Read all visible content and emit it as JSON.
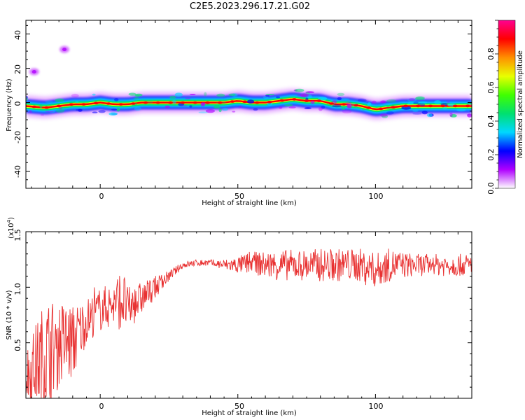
{
  "title": "C2E5.2023.296.17.21.G02",
  "chart_data": [
    {
      "type": "heatmap",
      "xlabel": "Height of straight line (km)",
      "ylabel": "Frequency (Hz)",
      "xlim": [
        -27,
        135
      ],
      "ylim": [
        -50,
        48
      ],
      "xticks": [
        "0",
        "50",
        "100"
      ],
      "yticks": [
        "40",
        "20",
        "0",
        "-20",
        "-40"
      ],
      "colorbar": {
        "label": "Normalized spectral amplitude",
        "ticks": [
          "0.0",
          "0.2",
          "0.4",
          "0.6",
          "0.8"
        ],
        "range": [
          0,
          1
        ],
        "colormap": [
          "#ffffff",
          "#b000ff",
          "#0000ff",
          "#00d8ff",
          "#00e070",
          "#40ff00",
          "#e8ff00",
          "#ff9000",
          "#ff0000",
          "#ff0090"
        ]
      },
      "ridge": {
        "x": [
          -27,
          -20,
          -15,
          -10,
          -5,
          0,
          5,
          10,
          15,
          20,
          30,
          40,
          45,
          50,
          55,
          60,
          65,
          70,
          75,
          80,
          85,
          90,
          95,
          100,
          105,
          110,
          115,
          120,
          125,
          130,
          135
        ],
        "y": [
          -2,
          -3,
          -2,
          -1,
          -1,
          0,
          -1,
          -1,
          0,
          0,
          0,
          0,
          0,
          1,
          0,
          0,
          1,
          2,
          1,
          1,
          -1,
          -1,
          -2,
          -4,
          -3,
          -2,
          -2,
          -2,
          -2,
          -2,
          -2
        ]
      },
      "spots": [
        {
          "x": -24,
          "y": 18,
          "value": 0.2
        },
        {
          "x": -13,
          "y": 31,
          "value": 0.15
        }
      ]
    },
    {
      "type": "line",
      "xlabel": "Height of straight line (km)",
      "ylabel": "SNR (10 * v/v)",
      "y_multiplier": "(x10",
      "y_multiplier_exp": "4",
      "xlim": [
        -27,
        135
      ],
      "ylim": [
        0,
        1.5
      ],
      "xticks": [
        "0",
        "50",
        "100"
      ],
      "yticks": [
        "1.5",
        "1.0",
        "0.5"
      ],
      "color": "#e83030",
      "x": [
        -27,
        -20,
        -15,
        -10,
        -5,
        0,
        5,
        8,
        10,
        15,
        20,
        25,
        30,
        35,
        40,
        45,
        50,
        55,
        60,
        65,
        70,
        75,
        80,
        85,
        90,
        95,
        100,
        105,
        110,
        115,
        120,
        125,
        130,
        135
      ],
      "y": [
        0.2,
        0.4,
        0.5,
        0.5,
        0.7,
        0.8,
        0.85,
        0.9,
        0.8,
        0.9,
        1.0,
        1.1,
        1.2,
        1.22,
        1.22,
        1.2,
        1.2,
        1.22,
        1.2,
        1.2,
        1.2,
        1.2,
        1.2,
        1.2,
        1.2,
        1.2,
        1.15,
        1.2,
        1.2,
        1.2,
        1.2,
        1.2,
        1.2,
        1.2
      ],
      "spread": [
        0.25,
        0.5,
        0.4,
        0.35,
        0.2,
        0.2,
        0.2,
        0.3,
        0.2,
        0.15,
        0.1,
        0.05,
        0.03,
        0.03,
        0.03,
        0.05,
        0.08,
        0.1,
        0.12,
        0.14,
        0.14,
        0.14,
        0.15,
        0.15,
        0.15,
        0.15,
        0.16,
        0.15,
        0.12,
        0.1,
        0.1,
        0.1,
        0.1,
        0.1
      ]
    }
  ]
}
